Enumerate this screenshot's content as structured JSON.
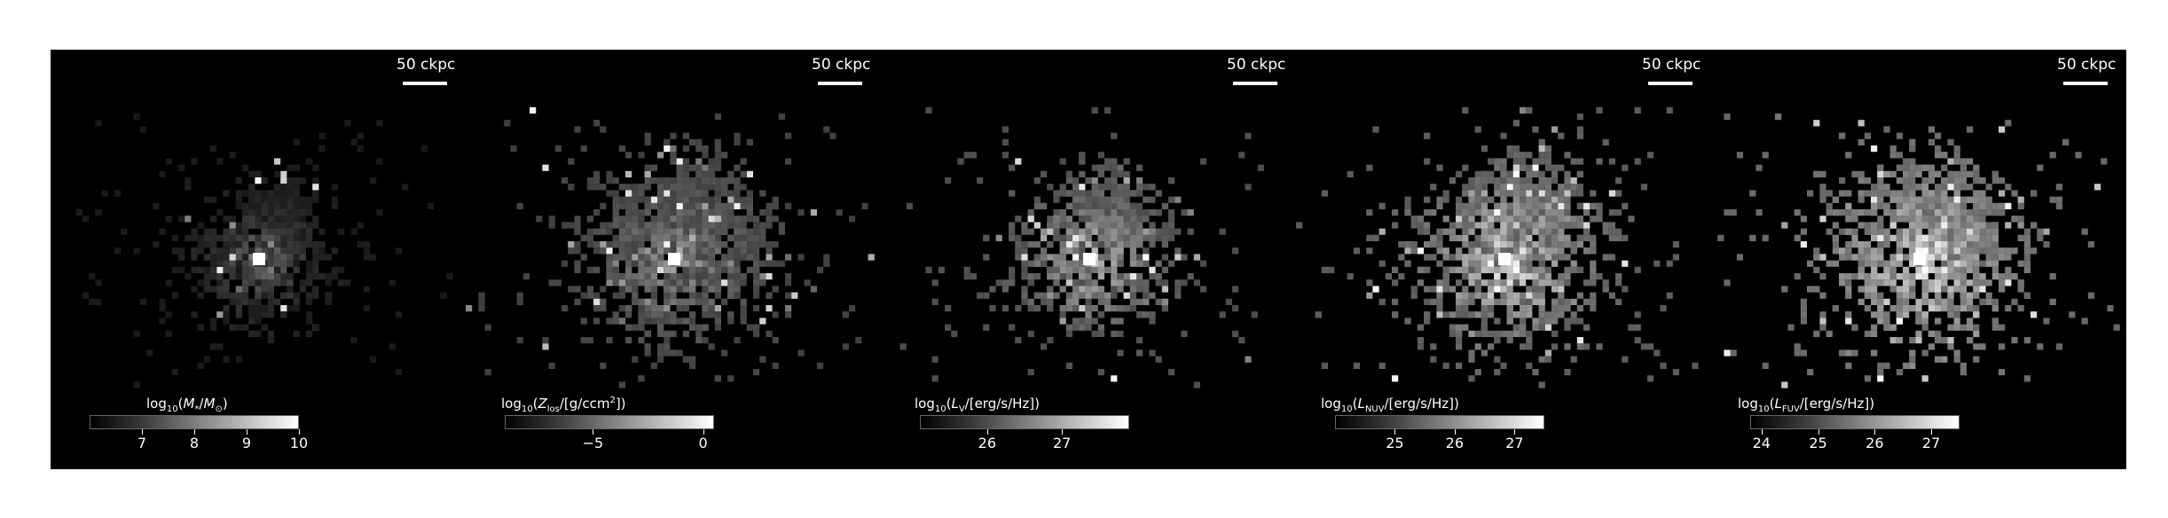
{
  "panels": [
    {
      "scale_label": "50 ckpc",
      "cbar_label": "log10(M*/M☉)",
      "cbar_ticks": [
        "7",
        "8",
        "9",
        "10"
      ],
      "cbar_range": [
        6.0,
        10.0
      ],
      "cbar_tick_values": [
        7,
        8,
        9,
        10
      ]
    },
    {
      "scale_label": "50 ckpc",
      "cbar_label": "log10(Zlos/[g/ccm2])",
      "cbar_ticks": [
        "−5",
        "0"
      ],
      "cbar_range": [
        -9.0,
        0.5
      ],
      "cbar_tick_values": [
        -5,
        0
      ]
    },
    {
      "scale_label": "50 ckpc",
      "cbar_label": "log10(LV/[erg/s/Hz])",
      "cbar_ticks": [
        "26",
        "27"
      ],
      "cbar_range": [
        25.1,
        27.9
      ],
      "cbar_tick_values": [
        26,
        27
      ]
    },
    {
      "scale_label": "50 ckpc",
      "cbar_label": "log10(LNUV/[erg/s/Hz])",
      "cbar_ticks": [
        "25",
        "26",
        "27"
      ],
      "cbar_range": [
        24.0,
        27.5
      ],
      "cbar_tick_values": [
        25,
        26,
        27
      ]
    },
    {
      "scale_label": "50 ckpc",
      "cbar_label": "log10(LFUV/[erg/s/Hz])",
      "cbar_ticks": [
        "24",
        "25",
        "26",
        "27"
      ],
      "cbar_range": [
        23.8,
        27.5
      ],
      "cbar_tick_values": [
        24,
        25,
        26,
        27
      ]
    }
  ]
}
